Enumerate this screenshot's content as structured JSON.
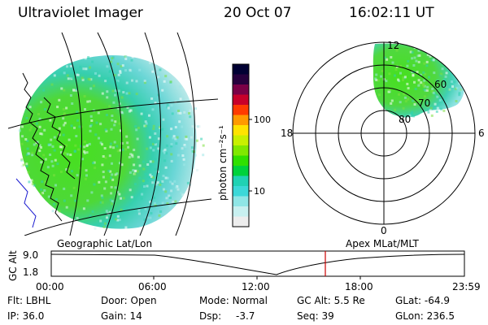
{
  "header": {
    "title": "Ultraviolet Imager",
    "date": "20 Oct 07",
    "time": "16:02:11 UT"
  },
  "colorbar": {
    "unit": "photon cm⁻²s⁻¹",
    "ticks": [
      "100",
      "10"
    ],
    "colors": [
      "#000033",
      "#26003d",
      "#7a0046",
      "#c8002a",
      "#ff3b00",
      "#ff9a00",
      "#ffe300",
      "#c8f000",
      "#80e800",
      "#30e000",
      "#00d23c",
      "#20d2b4",
      "#3cd8d8",
      "#8fe6e6",
      "#c8f0f0",
      "#ededed"
    ]
  },
  "polar": {
    "mlt_labels": [
      "12",
      "18",
      "6",
      "0"
    ],
    "lat_labels": [
      "60",
      "70",
      "80"
    ]
  },
  "left_panel": {
    "caption": "Geographic Lat/Lon"
  },
  "right_panel": {
    "caption": "Apex MLat/MLT"
  },
  "altitude_plot": {
    "ylabel": "GC Alt",
    "yticks": [
      "9.0",
      "1.8"
    ],
    "xticks": [
      "00:00",
      "06:00",
      "12:00",
      "18:00",
      "23:59"
    ],
    "marker_time": "16:02",
    "marker_color": "#cc0000"
  },
  "parameters": {
    "flt_label": "Flt:",
    "flt": "LBHL",
    "ip_label": "IP:",
    "ip": "36.0",
    "door_label": "Door:",
    "door": "Open",
    "gain_label": "Gain:",
    "gain": "14",
    "mode_label": "Mode:",
    "mode": "Normal",
    "dsp_label": "Dsp:",
    "dsp": "-3.7",
    "gcalt_label": "GC Alt:",
    "gcalt": "5.5 Re",
    "seq_label": "Seq:",
    "seq": "39",
    "glat_label": "GLat:",
    "glat": "-64.9",
    "glon_label": "GLon:",
    "glon": "236.5"
  }
}
